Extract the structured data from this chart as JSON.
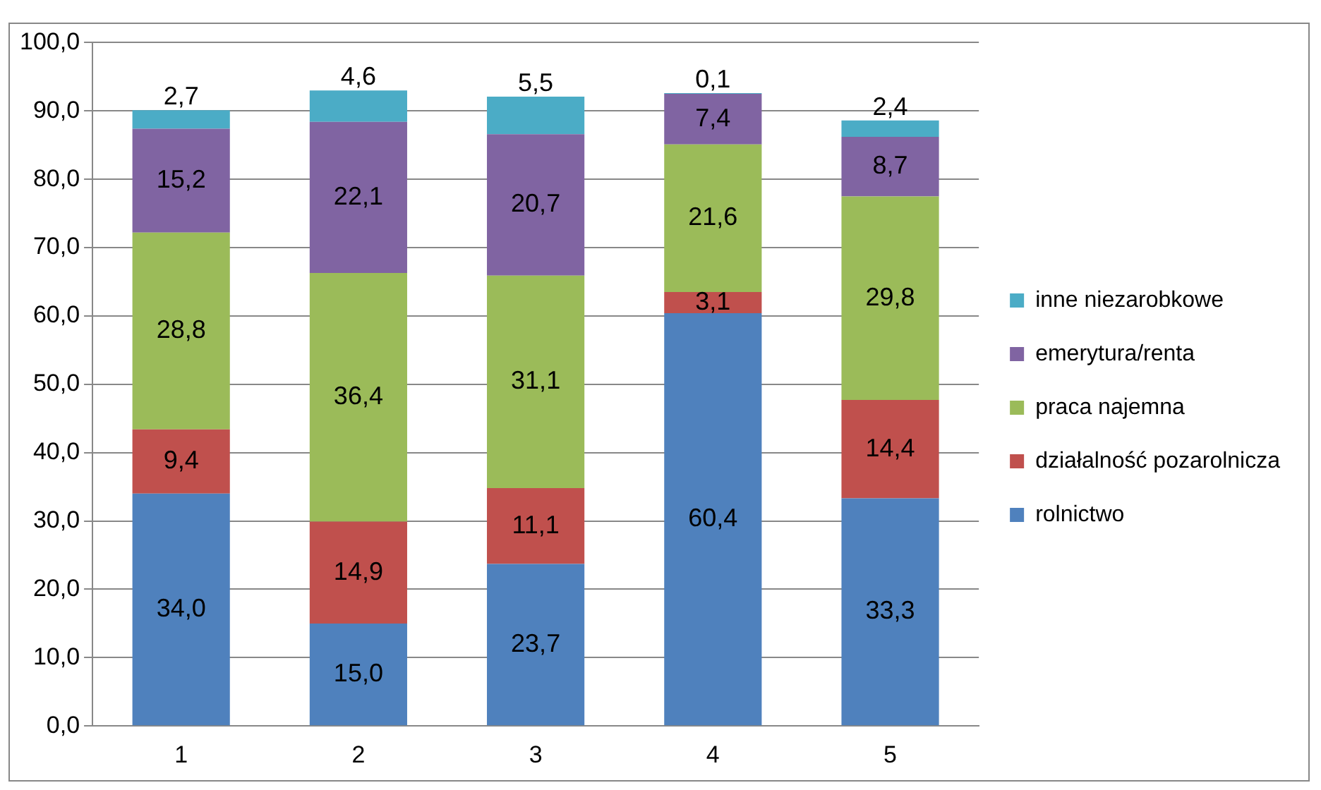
{
  "chart_data": {
    "type": "bar",
    "stacked": true,
    "categories": [
      "1",
      "2",
      "3",
      "4",
      "5"
    ],
    "series": [
      {
        "name": "rolnictwo",
        "color": "#4f81bd",
        "values": [
          34.0,
          15.0,
          23.7,
          60.4,
          33.3
        ],
        "value_labels": [
          "34,0",
          "15,0",
          "23,7",
          "60,4",
          "33,3"
        ]
      },
      {
        "name": "działalność pozarolnicza",
        "color": "#c0504d",
        "values": [
          9.4,
          14.9,
          11.1,
          3.1,
          14.4
        ],
        "value_labels": [
          "9,4",
          "14,9",
          "11,1",
          "3,1",
          "14,4"
        ]
      },
      {
        "name": "praca najemna",
        "color": "#9bbb59",
        "values": [
          28.8,
          36.4,
          31.1,
          21.6,
          29.8
        ],
        "value_labels": [
          "28,8",
          "36,4",
          "31,1",
          "21,6",
          "29,8"
        ]
      },
      {
        "name": "emerytura/renta",
        "color": "#8064a2",
        "values": [
          15.2,
          22.1,
          20.7,
          7.4,
          8.7
        ],
        "value_labels": [
          "15,2",
          "22,1",
          "20,7",
          "7,4",
          "8,7"
        ]
      },
      {
        "name": "inne niezarobkowe",
        "color": "#4bacc6",
        "values": [
          2.7,
          4.6,
          5.5,
          0.1,
          2.4
        ],
        "value_labels": [
          "2,7",
          "4,6",
          "5,5",
          "0,1",
          "2,4"
        ]
      }
    ],
    "ylim": [
      0,
      100
    ],
    "yticks": [
      {
        "value": 0,
        "label": "0,0"
      },
      {
        "value": 10,
        "label": "10,0"
      },
      {
        "value": 20,
        "label": "20,0"
      },
      {
        "value": 30,
        "label": "30,0"
      },
      {
        "value": 40,
        "label": "40,0"
      },
      {
        "value": 50,
        "label": "50,0"
      },
      {
        "value": 60,
        "label": "60,0"
      },
      {
        "value": 70,
        "label": "70,0"
      },
      {
        "value": 80,
        "label": "80,0"
      },
      {
        "value": 90,
        "label": "90,0"
      },
      {
        "value": 100,
        "label": "100,0"
      }
    ],
    "grid": "y",
    "legend": "right"
  }
}
